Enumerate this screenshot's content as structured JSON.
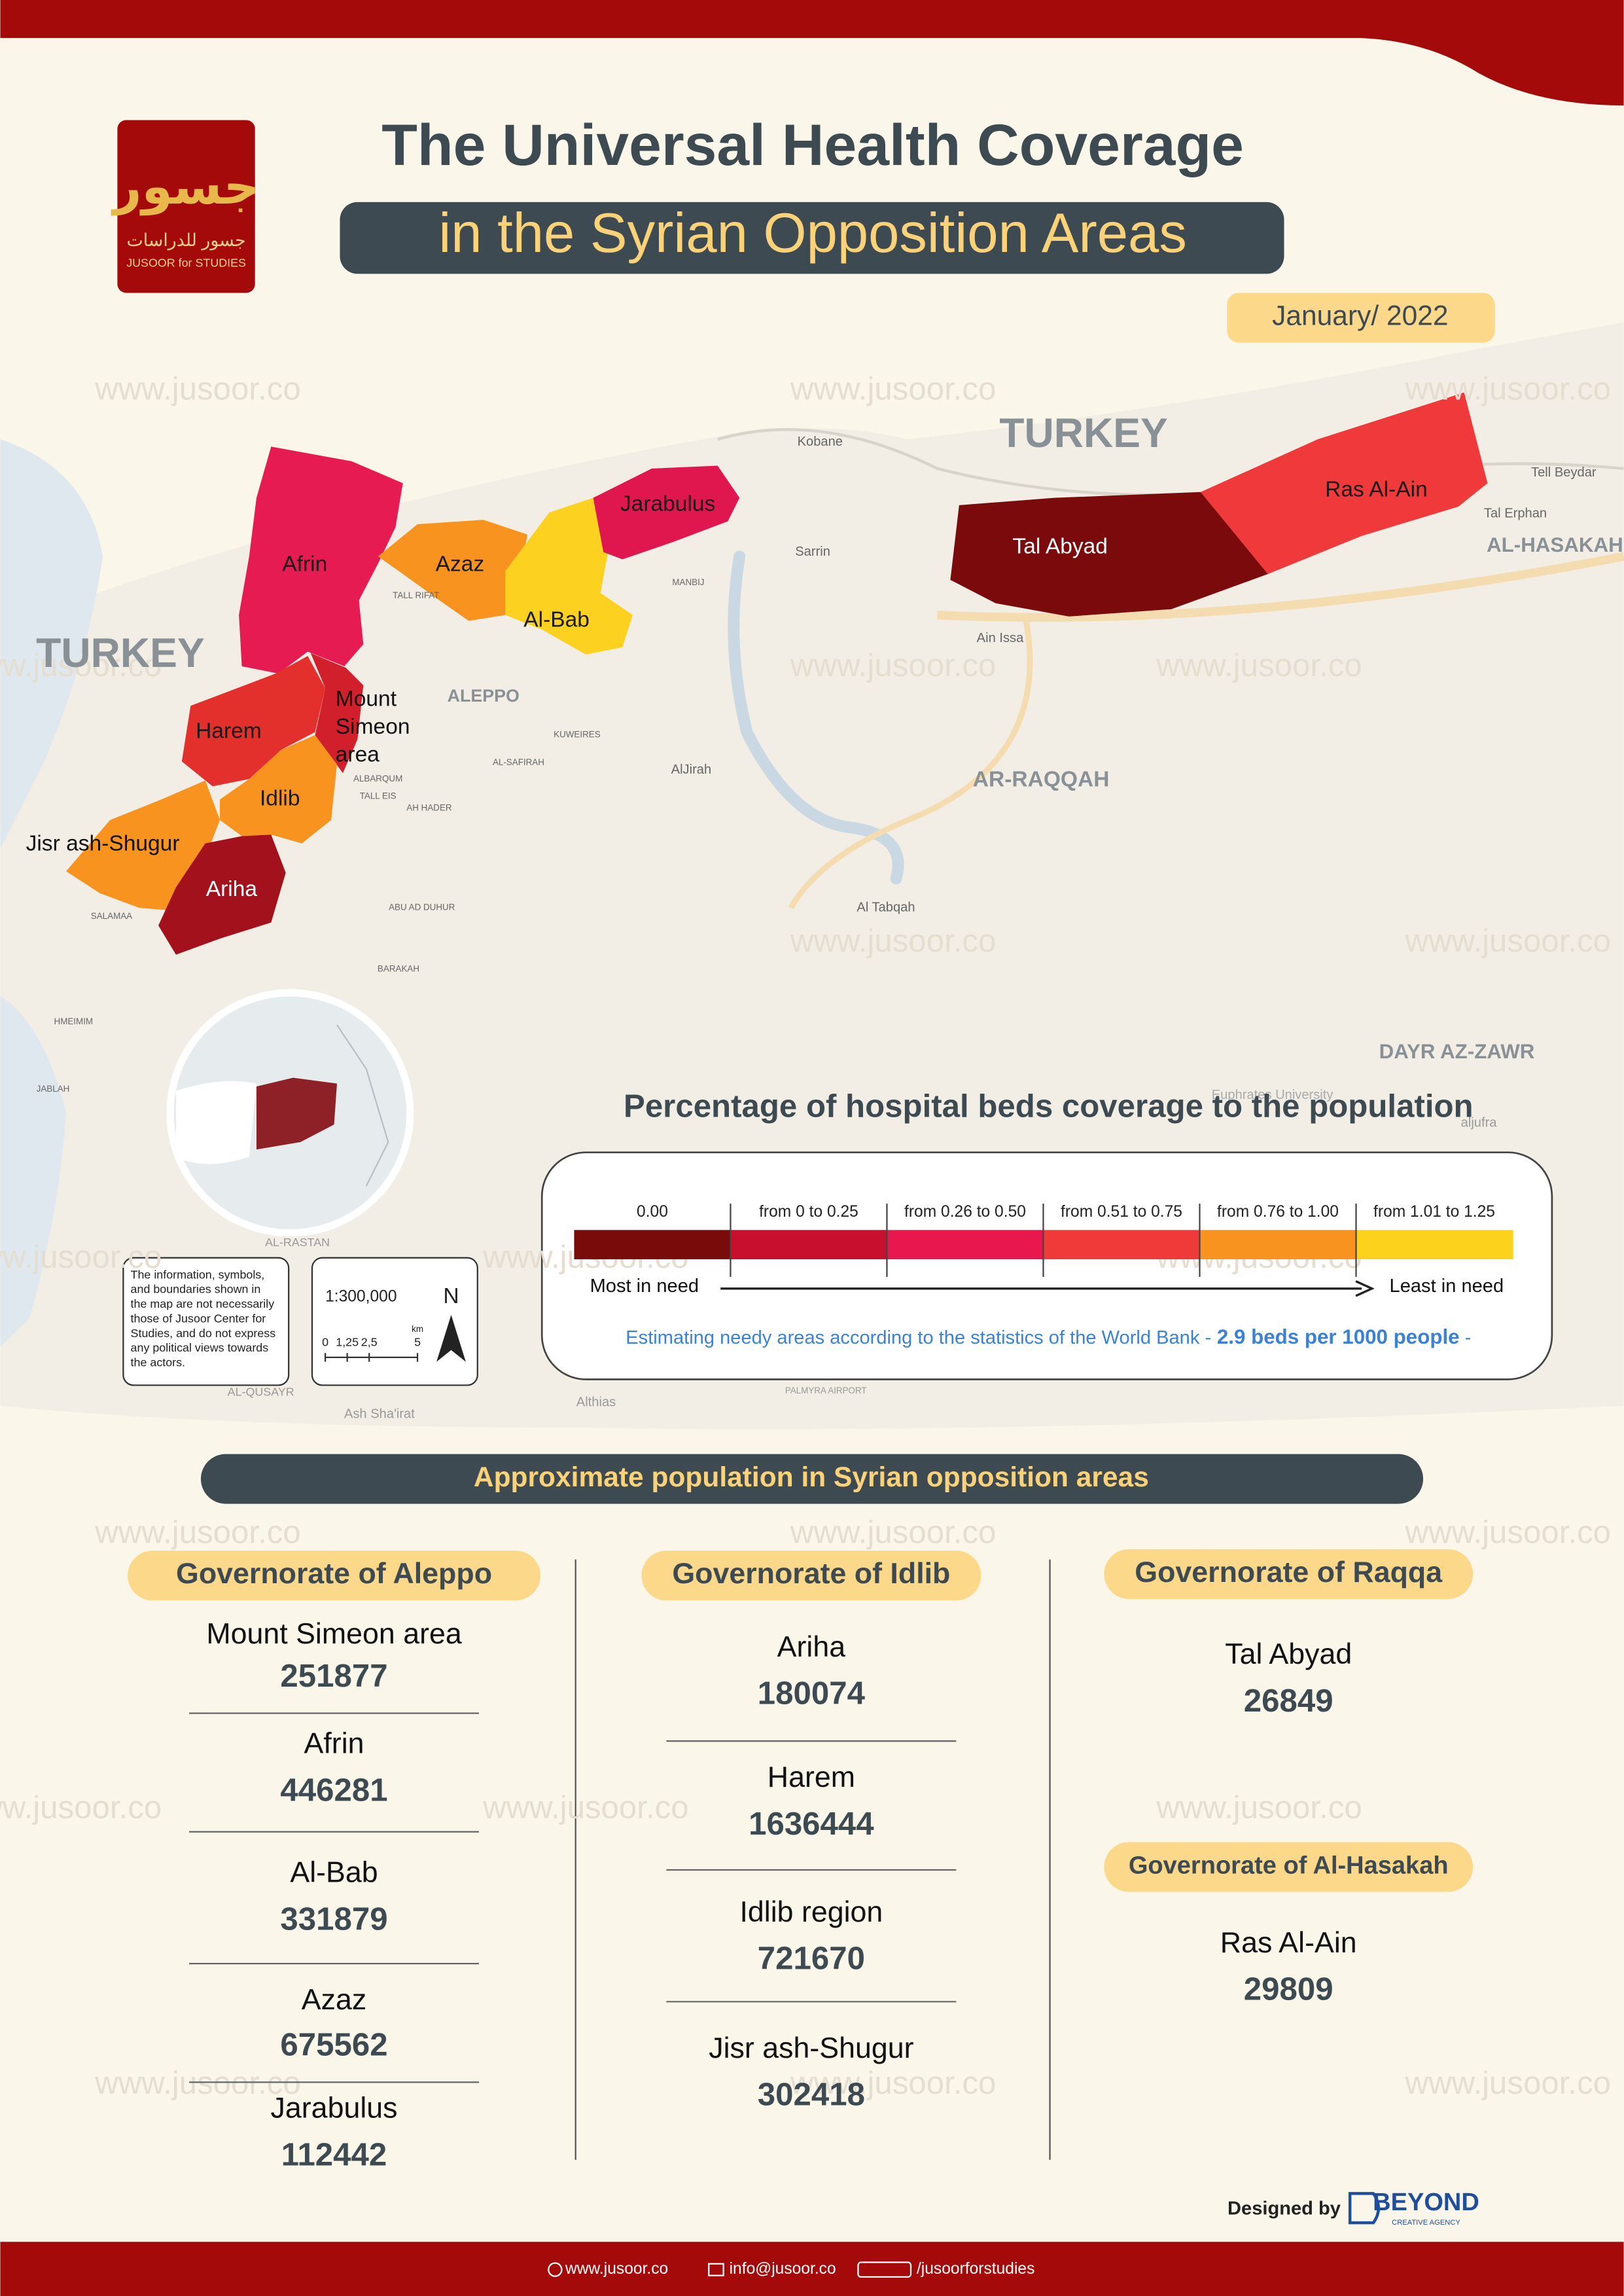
{
  "header": {
    "logo_arabic": "جسور",
    "logo_arabic_sub": "جسور للدراسات",
    "logo_english": "JUSOOR for STUDIES",
    "title_line1": "The Universal Health Coverage",
    "title_line2": "in the Syrian Opposition Areas",
    "date": "January/ 2022"
  },
  "watermark": "www.jusoor.co",
  "map": {
    "regions": [
      {
        "name": "Afrin",
        "color": "#e61b52"
      },
      {
        "name": "Azaz",
        "color": "#f7931e"
      },
      {
        "name": "Al-Bab",
        "color": "#fcd11f"
      },
      {
        "name": "Jarabulus",
        "color": "#e0164f"
      },
      {
        "name": "Harem",
        "color": "#e3302c"
      },
      {
        "name": "Mount Simeon area",
        "color": "#d11f2b"
      },
      {
        "name": "Idlib",
        "color": "#f7931e"
      },
      {
        "name": "Jisr ash-Shugur",
        "color": "#f7931e"
      },
      {
        "name": "Ariha",
        "color": "#a3111d"
      },
      {
        "name": "Tal Abyad",
        "color": "#7a0a0c"
      },
      {
        "name": "Ras Al-Ain",
        "color": "#f0393a"
      }
    ],
    "places": [
      "TURKEY",
      "TURKEY",
      "ALEPPO",
      "AR-RAQQAH",
      "DAYR AZ-ZAWR",
      "AL-HASAKAH",
      "Kobane",
      "Sarrin",
      "Ain Issa",
      "Tell Beydar",
      "Tal Erphan",
      "AlJirah",
      "Al Tabqah",
      "KUWEIRES",
      "AL-SAFIRAH",
      "TALL RIFAT",
      "MANBIJ",
      "Ash Sha'irat",
      "Althias",
      "PALMYRA AIRPORT",
      "AL-QUSAYR",
      "AL-RASTAN",
      "ALBARQUM",
      "TALL EIS",
      "AH HADER",
      "ABU AD DUHUR",
      "BARAKAH",
      "SALAMAA",
      "HMEIMIM",
      "JABLAH",
      "Euphrates University",
      "aljufra"
    ],
    "disclaimer": [
      "The information, symbols,",
      "and boundaries shown in",
      "the map are not necessarily",
      "those of Jusoor Center for",
      "Studies, and do not express",
      "any political views towards",
      "the actors."
    ],
    "scale": "1:300,000",
    "scale_ticks": [
      "0",
      "1,25",
      "2,5",
      "5"
    ],
    "scale_unit": "km",
    "north": "N"
  },
  "legend": {
    "title": "Percentage of hospital beds coverage to the population",
    "bins": [
      {
        "label": "0.00",
        "color": "#7a0b0b"
      },
      {
        "label": "from 0 to 0.25",
        "color": "#c8102e"
      },
      {
        "label": "from 0.26 to 0.50",
        "color": "#e8184f"
      },
      {
        "label": "from 0.51 to 0.75",
        "color": "#f03a3a"
      },
      {
        "label": "from 0.76 to 1.00",
        "color": "#f7931e"
      },
      {
        "label": "from 1.01 to 1.25",
        "color": "#fcd21c"
      }
    ],
    "most": "Most in need",
    "least": "Least in need",
    "note": "Estimating needy areas according to the statistics of the World Bank -",
    "note_bold": "2.9 beds per 1000 people",
    "note_end": "-"
  },
  "population": {
    "title": "Approximate population in Syrian opposition areas",
    "governorates": [
      {
        "name": "Governorate of Aleppo",
        "areas": [
          {
            "name": "Mount Simeon area",
            "population": 251877
          },
          {
            "name": "Afrin",
            "population": 446281
          },
          {
            "name": "Al-Bab",
            "population": 331879
          },
          {
            "name": "Azaz",
            "population": 675562
          },
          {
            "name": "Jarabulus",
            "population": 112442
          }
        ]
      },
      {
        "name": "Governorate of Idlib",
        "areas": [
          {
            "name": "Ariha",
            "population": 180074
          },
          {
            "name": "Harem",
            "population": 1636444
          },
          {
            "name": "Idlib region",
            "population": 721670
          },
          {
            "name": "Jisr ash-Shugur",
            "population": 302418
          }
        ]
      },
      {
        "name": "Governorate of Raqqa",
        "areas": [
          {
            "name": "Tal Abyad",
            "population": 26849
          }
        ]
      },
      {
        "name": "Governorate of Al-Hasakah",
        "areas": [
          {
            "name": "Ras Al-Ain",
            "population": 29809
          }
        ]
      }
    ]
  },
  "footer": {
    "designed_by": "Designed by",
    "brand": "BEYOND",
    "brand_sub": "CREATIVE AGENCY",
    "website": "www.jusoor.co",
    "email": "info@jusoor.co",
    "social": "/jusoorforstudies"
  }
}
